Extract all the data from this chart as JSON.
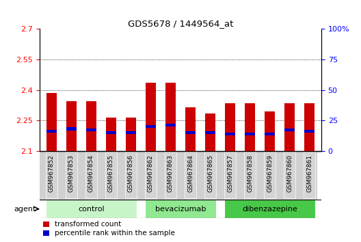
{
  "title": "GDS5678 / 1449564_at",
  "samples": [
    "GSM967852",
    "GSM967853",
    "GSM967854",
    "GSM967855",
    "GSM967856",
    "GSM967862",
    "GSM967863",
    "GSM967864",
    "GSM967865",
    "GSM967857",
    "GSM967858",
    "GSM967859",
    "GSM967860",
    "GSM967861"
  ],
  "transformed_counts": [
    2.385,
    2.345,
    2.345,
    2.265,
    2.265,
    2.435,
    2.435,
    2.315,
    2.285,
    2.335,
    2.335,
    2.295,
    2.335,
    2.335
  ],
  "percentile_ranks": [
    16,
    18,
    17,
    15,
    15,
    20,
    21,
    15,
    15,
    14,
    14,
    14,
    17,
    16
  ],
  "groups": [
    {
      "name": "control",
      "indices": [
        0,
        1,
        2,
        3,
        4
      ],
      "color": "#c8f5c8"
    },
    {
      "name": "bevacizumab",
      "indices": [
        5,
        6,
        7,
        8
      ],
      "color": "#90e890"
    },
    {
      "name": "dibenzazepine",
      "indices": [
        9,
        10,
        11,
        12,
        13
      ],
      "color": "#48c848"
    }
  ],
  "ylim_left": [
    2.1,
    2.7
  ],
  "ylim_right": [
    0,
    100
  ],
  "yticks_left": [
    2.1,
    2.25,
    2.4,
    2.55,
    2.7
  ],
  "yticks_right": [
    0,
    25,
    50,
    75,
    100
  ],
  "ytick_labels_left": [
    "2.1",
    "2.25",
    "2.4",
    "2.55",
    "2.7"
  ],
  "ytick_labels_right": [
    "0",
    "25",
    "50",
    "75",
    "100%"
  ],
  "bar_color_red": "#cc0000",
  "bar_color_blue": "#0000cc",
  "bar_width": 0.55,
  "grid_color": "#000000",
  "background_color": "#ffffff",
  "plot_bg": "#ffffff",
  "agent_label": "agent",
  "legend_red": "transformed count",
  "legend_blue": "percentile rank within the sample",
  "xtick_bg": "#d0d0d0"
}
